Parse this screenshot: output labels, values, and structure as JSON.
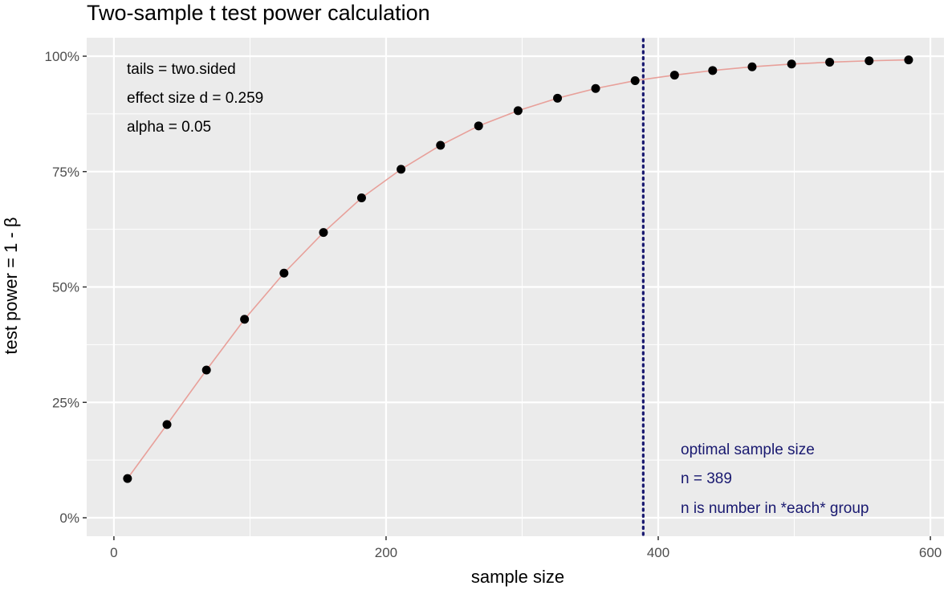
{
  "chart_data": {
    "type": "scatter",
    "title": "Two-sample t test power calculation",
    "xlabel": "sample size",
    "ylabel": "test power = 1 - β",
    "xlim": [
      -20,
      610
    ],
    "ylim": [
      -0.04,
      1.04
    ],
    "x_ticks": [
      0,
      200,
      400,
      600
    ],
    "x_tick_labels": [
      "0",
      "200",
      "400",
      "600"
    ],
    "y_ticks": [
      0,
      0.25,
      0.5,
      0.75,
      1.0
    ],
    "y_tick_labels": [
      "0%",
      "25%",
      "50%",
      "75%",
      "100%"
    ],
    "grid": true,
    "series": [
      {
        "name": "power",
        "x": [
          10,
          39,
          68,
          96,
          125,
          154,
          182,
          211,
          240,
          268,
          297,
          326,
          354,
          383,
          412,
          440,
          469,
          498,
          526,
          555,
          584
        ],
        "y": [
          0.085,
          0.202,
          0.32,
          0.43,
          0.53,
          0.618,
          0.693,
          0.755,
          0.807,
          0.849,
          0.882,
          0.909,
          0.93,
          0.947,
          0.959,
          0.969,
          0.977,
          0.983,
          0.987,
          0.99,
          0.992
        ],
        "point_color": "#000000",
        "line_color": "#e8a09a"
      }
    ],
    "vline": {
      "x": 389,
      "color": "#191970",
      "style": "dotted"
    },
    "annotations_top_left": [
      "tails = two.sided",
      "effect size d = 0.259",
      "alpha = 0.05"
    ],
    "annotations_bottom_right": [
      "optimal sample size",
      "n = 389",
      "n is number in *each* group"
    ],
    "annotation_colors": {
      "top_left": "#000000",
      "bottom_right": "#191970"
    },
    "panel_background": "#ebebeb",
    "grid_color": "#ffffff"
  }
}
